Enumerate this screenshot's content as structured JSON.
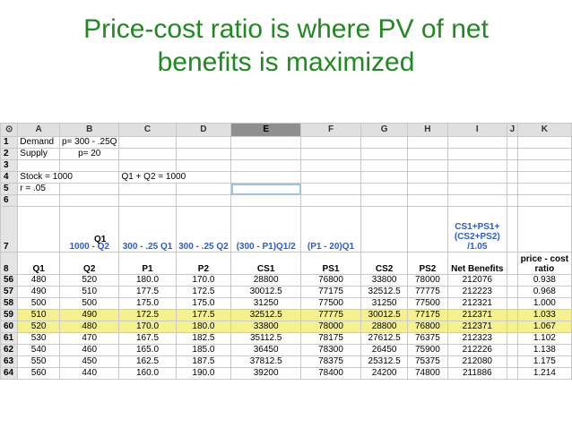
{
  "title_line1": "Price-cost ratio is where PV of net",
  "title_line2": "benefits is maximized",
  "columns": [
    "A",
    "B",
    "C",
    "D",
    "E",
    "F",
    "G",
    "H",
    "I",
    "J",
    "K"
  ],
  "top_rows": {
    "r1": {
      "num": "1",
      "a": "Demand",
      "b": "p= 300 - .25Q"
    },
    "r2": {
      "num": "2",
      "a": "Supply",
      "b": "p= 20"
    },
    "r3": {
      "num": "3"
    },
    "r4": {
      "num": "4",
      "a": "Stock = 1000",
      "c": "Q1 + Q2 = 1000"
    },
    "r5": {
      "num": "5",
      "a": "r = .05"
    },
    "r6": {
      "num": "6"
    }
  },
  "row7": {
    "num": "7",
    "b": "1000 - Q2",
    "c": "300 - .25 Q1",
    "d": "300 - .25 Q2",
    "e": "(300 - P1)Q1/2",
    "f": "(P1 - 20)Q1",
    "i": "CS1+PS1+ (CS2+PS2) /1.05",
    "overlay": "Q1"
  },
  "headers": {
    "num": "8",
    "cells": [
      "Q1",
      "Q2",
      "P1",
      "P2",
      "CS1",
      "PS1",
      "CS2",
      "PS2",
      "Net Benefits",
      "",
      "price - cost ratio"
    ]
  },
  "rows": [
    {
      "num": "56",
      "v": [
        "480",
        "520",
        "180.0",
        "170.0",
        "28800",
        "76800",
        "33800",
        "78000",
        "212076",
        "",
        "0.938"
      ]
    },
    {
      "num": "57",
      "v": [
        "490",
        "510",
        "177.5",
        "172.5",
        "30012.5",
        "77175",
        "32512.5",
        "77775",
        "212223",
        "",
        "0.968"
      ]
    },
    {
      "num": "58",
      "v": [
        "500",
        "500",
        "175.0",
        "175.0",
        "31250",
        "77500",
        "31250",
        "77500",
        "212321",
        "",
        "1.000"
      ]
    },
    {
      "num": "59",
      "v": [
        "510",
        "490",
        "172.5",
        "177.5",
        "32512.5",
        "77775",
        "30012.5",
        "77175",
        "212371",
        "",
        "1.033"
      ],
      "hl": true
    },
    {
      "num": "60",
      "v": [
        "520",
        "480",
        "170.0",
        "180.0",
        "33800",
        "78000",
        "28800",
        "76800",
        "212371",
        "",
        "1.067"
      ],
      "hl": true
    },
    {
      "num": "61",
      "v": [
        "530",
        "470",
        "167.5",
        "182.5",
        "35112.5",
        "78175",
        "27612.5",
        "76375",
        "212323",
        "",
        "1.102"
      ]
    },
    {
      "num": "62",
      "v": [
        "540",
        "460",
        "165.0",
        "185.0",
        "36450",
        "78300",
        "26450",
        "75900",
        "212226",
        "",
        "1.138"
      ]
    },
    {
      "num": "63",
      "v": [
        "550",
        "450",
        "162.5",
        "187.5",
        "37812.5",
        "78375",
        "25312.5",
        "75375",
        "212080",
        "",
        "1.175"
      ]
    },
    {
      "num": "64",
      "v": [
        "560",
        "440",
        "160.0",
        "190.0",
        "39200",
        "78400",
        "24200",
        "74800",
        "211886",
        "",
        "1.214"
      ]
    }
  ]
}
